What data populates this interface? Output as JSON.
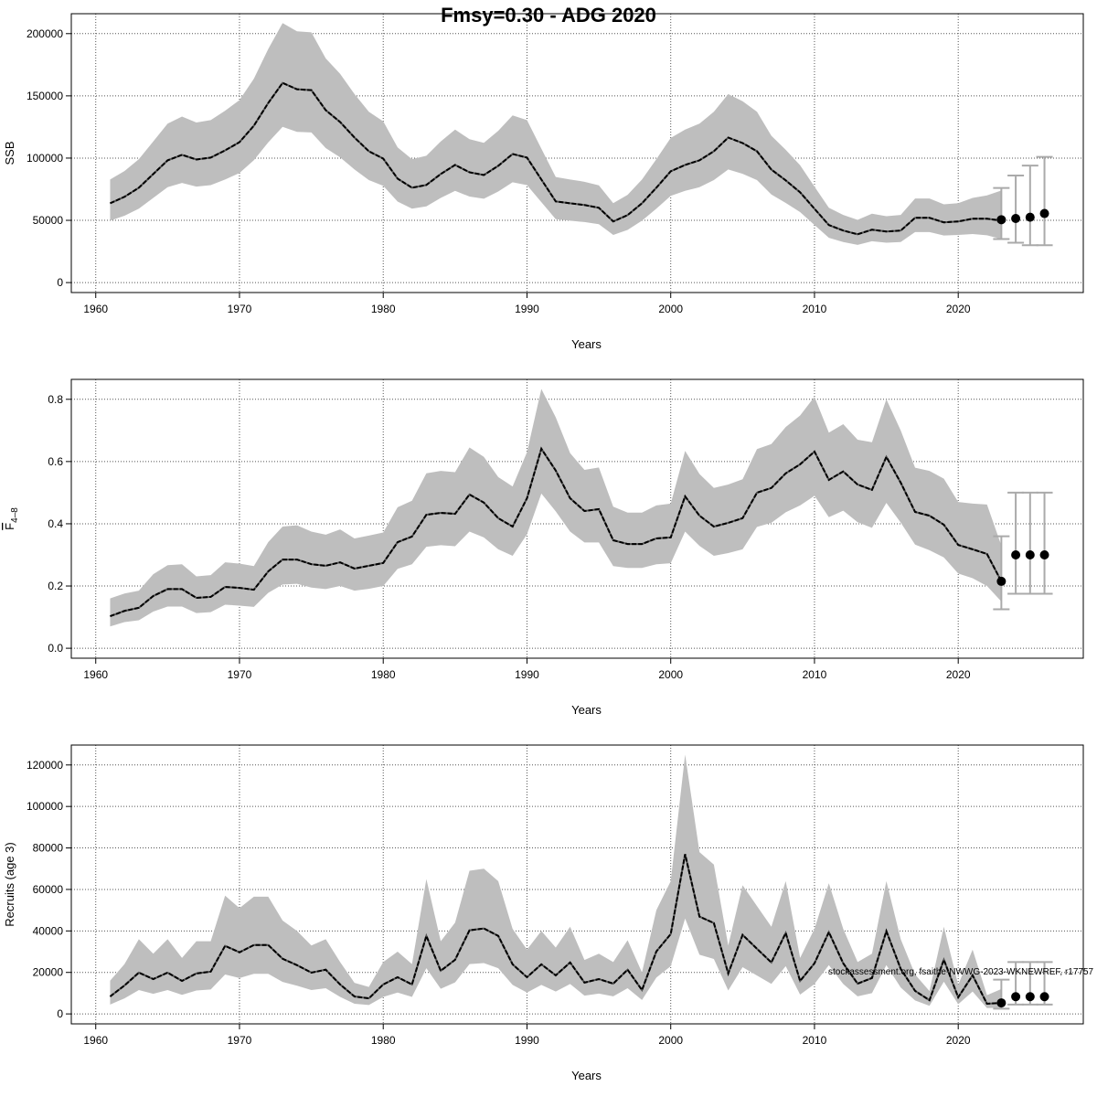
{
  "chart_data": {
    "title": "Fmsy=0.30 - ADG 2020",
    "annotation": "stockassessment.org, fsaithe-NWWG-2023-WKNEWREF, r17757",
    "panels": [
      {
        "type": "line",
        "ylabel": "SSB",
        "xlabel": "Years",
        "xlim": [
          1958.3,
          2028.7
        ],
        "ylim": [
          -8000,
          216000
        ],
        "xticks": [
          1960,
          1970,
          1980,
          1990,
          2000,
          2010,
          2020
        ],
        "yticks": [
          0,
          50000,
          100000,
          150000,
          200000
        ],
        "grid": true,
        "x_start": 1961,
        "median": [
          63700,
          68900,
          76200,
          87200,
          98200,
          102600,
          98900,
          100400,
          106200,
          112800,
          126000,
          144300,
          160400,
          155300,
          154600,
          138500,
          129000,
          116500,
          105500,
          99600,
          83500,
          76200,
          78400,
          87200,
          94500,
          88600,
          86400,
          93800,
          103300,
          100400,
          82800,
          65200,
          63700,
          62300,
          60100,
          49100,
          54200,
          63700,
          76200,
          89400,
          94500,
          98200,
          105500,
          116500,
          112100,
          105500,
          90800,
          82100,
          72500,
          59300,
          46200,
          41800,
          38800,
          42500,
          41000,
          41800,
          52000,
          52000,
          48400,
          49100,
          51300,
          51300,
          49800
        ],
        "upper": [
          82800,
          89600,
          99100,
          113400,
          127700,
          133400,
          128600,
          130500,
          138100,
          146600,
          163800,
          187600,
          208500,
          201900,
          201000,
          180100,
          167700,
          151500,
          137200,
          129500,
          108600,
          99100,
          101900,
          113400,
          122900,
          115200,
          112300,
          121900,
          134300,
          130500,
          107600,
          84800,
          82800,
          81000,
          78100,
          63800,
          70500,
          82800,
          99100,
          116200,
          122900,
          127700,
          137200,
          151500,
          145700,
          137200,
          118000,
          106700,
          94300,
          77100,
          60100,
          54300,
          50400,
          55300,
          53300,
          54300,
          67600,
          67600,
          62900,
          63800,
          68000,
          70000,
          74000
        ],
        "lower": [
          49700,
          53700,
          59400,
          68000,
          76600,
          80000,
          77100,
          78300,
          82800,
          88000,
          98300,
          112600,
          125100,
          121100,
          120600,
          108000,
          100600,
          90900,
          82300,
          77700,
          65100,
          59400,
          61200,
          68000,
          73700,
          69100,
          67400,
          73200,
          80600,
          78300,
          64600,
          50900,
          49700,
          48600,
          46900,
          38300,
          42300,
          49700,
          59400,
          69700,
          73700,
          76600,
          82300,
          90900,
          87400,
          82300,
          70800,
          64000,
          56600,
          46300,
          36000,
          32600,
          30300,
          33200,
          32000,
          32600,
          40600,
          40600,
          37800,
          38300,
          39000,
          38000,
          35000
        ],
        "projection": [
          {
            "year": 2023,
            "value": 50500,
            "low": 35000,
            "high": 76000
          },
          {
            "year": 2024,
            "value": 51500,
            "low": 32000,
            "high": 86000
          },
          {
            "year": 2025,
            "value": 52500,
            "low": 30000,
            "high": 94000
          },
          {
            "year": 2026,
            "value": 55500,
            "low": 30000,
            "high": 101000
          }
        ]
      },
      {
        "type": "line",
        "ylabel": "F",
        "ylabel_sub": "4–8",
        "xlabel": "Years",
        "xlim": [
          1958.3,
          2028.7
        ],
        "ylim": [
          -0.032,
          0.864
        ],
        "xticks": [
          1960,
          1970,
          1980,
          1990,
          2000,
          2010,
          2020
        ],
        "yticks": [
          0.0,
          0.2,
          0.4,
          0.6,
          0.8
        ],
        "yticklabels": [
          "0.0",
          "0.2",
          "0.4",
          "0.6",
          "0.8"
        ],
        "grid": true,
        "x_start": 1961,
        "median": [
          0.103,
          0.12,
          0.13,
          0.168,
          0.19,
          0.19,
          0.162,
          0.165,
          0.197,
          0.194,
          0.188,
          0.247,
          0.285,
          0.285,
          0.27,
          0.265,
          0.276,
          0.256,
          0.265,
          0.274,
          0.341,
          0.359,
          0.429,
          0.435,
          0.432,
          0.494,
          0.468,
          0.418,
          0.391,
          0.482,
          0.641,
          0.571,
          0.482,
          0.441,
          0.447,
          0.347,
          0.335,
          0.335,
          0.353,
          0.356,
          0.488,
          0.426,
          0.391,
          0.403,
          0.418,
          0.5,
          0.515,
          0.562,
          0.591,
          0.632,
          0.541,
          0.568,
          0.526,
          0.509,
          0.615,
          0.532,
          0.438,
          0.426,
          0.397,
          0.332,
          0.318,
          0.303,
          0.215
        ],
        "upper": [
          0.16,
          0.176,
          0.185,
          0.238,
          0.267,
          0.27,
          0.231,
          0.235,
          0.276,
          0.272,
          0.264,
          0.341,
          0.391,
          0.395,
          0.375,
          0.365,
          0.382,
          0.353,
          0.362,
          0.372,
          0.453,
          0.474,
          0.562,
          0.57,
          0.566,
          0.645,
          0.615,
          0.55,
          0.52,
          0.63,
          0.833,
          0.742,
          0.627,
          0.573,
          0.581,
          0.455,
          0.436,
          0.436,
          0.459,
          0.465,
          0.634,
          0.56,
          0.515,
          0.526,
          0.543,
          0.64,
          0.656,
          0.711,
          0.748,
          0.808,
          0.693,
          0.72,
          0.67,
          0.662,
          0.8,
          0.7,
          0.58,
          0.57,
          0.545,
          0.47,
          0.465,
          0.462,
          0.33
        ],
        "lower": [
          0.07,
          0.084,
          0.09,
          0.118,
          0.134,
          0.134,
          0.113,
          0.116,
          0.14,
          0.137,
          0.133,
          0.178,
          0.205,
          0.207,
          0.195,
          0.19,
          0.2,
          0.185,
          0.191,
          0.2,
          0.255,
          0.27,
          0.326,
          0.331,
          0.328,
          0.375,
          0.356,
          0.318,
          0.297,
          0.366,
          0.497,
          0.44,
          0.375,
          0.34,
          0.34,
          0.264,
          0.258,
          0.258,
          0.27,
          0.273,
          0.375,
          0.329,
          0.297,
          0.306,
          0.318,
          0.39,
          0.403,
          0.437,
          0.459,
          0.49,
          0.421,
          0.442,
          0.405,
          0.387,
          0.467,
          0.404,
          0.333,
          0.315,
          0.292,
          0.24,
          0.225,
          0.2,
          0.15
        ],
        "projection": [
          {
            "year": 2023,
            "value": 0.215,
            "low": 0.125,
            "high": 0.36
          },
          {
            "year": 2024,
            "value": 0.3,
            "low": 0.175,
            "high": 0.5
          },
          {
            "year": 2025,
            "value": 0.3,
            "low": 0.175,
            "high": 0.5
          },
          {
            "year": 2026,
            "value": 0.3,
            "low": 0.175,
            "high": 0.5
          }
        ]
      },
      {
        "type": "line",
        "ylabel": "Recruits (age 3)",
        "xlabel": "Years",
        "xlim": [
          1958.3,
          2028.7
        ],
        "ylim": [
          -4800,
          129600
        ],
        "xticks": [
          1960,
          1970,
          1980,
          1990,
          2000,
          2010,
          2020
        ],
        "yticks": [
          0,
          20000,
          40000,
          60000,
          80000,
          100000,
          120000
        ],
        "grid": true,
        "x_start": 1961,
        "median": [
          8400,
          13700,
          19900,
          16800,
          19900,
          15900,
          19500,
          20400,
          32800,
          29700,
          33200,
          33200,
          26600,
          23500,
          19900,
          21300,
          14200,
          8400,
          7500,
          14200,
          17700,
          14200,
          37600,
          20800,
          26100,
          40300,
          41200,
          37600,
          23900,
          17700,
          23900,
          18600,
          24800,
          15100,
          16800,
          14600,
          21300,
          11500,
          30100,
          38500,
          77000,
          46900,
          43800,
          19500,
          38100,
          31400,
          24800,
          39000,
          15900,
          24400,
          39400,
          24400,
          14600,
          17300,
          39900,
          21700,
          11100,
          6600,
          26100,
          8000,
          18600,
          4900,
          5300
        ],
        "upper": [
          16000,
          24000,
          36000,
          29000,
          36000,
          27000,
          35000,
          35000,
          57000,
          51000,
          56500,
          56500,
          45000,
          40000,
          33000,
          36000,
          25000,
          15000,
          13000,
          25000,
          30000,
          24000,
          65000,
          35000,
          44000,
          69000,
          70000,
          64000,
          41000,
          31000,
          40000,
          32000,
          42000,
          26000,
          29000,
          25000,
          35500,
          20000,
          50000,
          64000,
          125000,
          78000,
          72000,
          33000,
          62000,
          52000,
          42000,
          64000,
          27000,
          41000,
          63000,
          41000,
          25000,
          29000,
          64000,
          36000,
          19000,
          11000,
          42000,
          14000,
          31000,
          9000,
          12000
        ],
        "lower": [
          4500,
          7500,
          11500,
          9700,
          11500,
          9200,
          11300,
          11800,
          19000,
          17300,
          19300,
          19300,
          15400,
          13600,
          11500,
          12400,
          8200,
          4900,
          4300,
          8200,
          10300,
          8200,
          22000,
          12100,
          15200,
          24000,
          24500,
          22000,
          14000,
          10300,
          14000,
          10800,
          14400,
          8800,
          9800,
          8500,
          12400,
          6700,
          17500,
          23000,
          46000,
          28500,
          26500,
          11300,
          22500,
          18500,
          14500,
          23000,
          9300,
          14400,
          23500,
          14400,
          8500,
          10000,
          23500,
          12700,
          6500,
          3900,
          15500,
          4700,
          10800,
          2800,
          3000
        ],
        "projection": [
          {
            "year": 2023,
            "value": 5300,
            "low": 2500,
            "high": 16500
          },
          {
            "year": 2024,
            "value": 8300,
            "low": 4500,
            "high": 25000
          },
          {
            "year": 2025,
            "value": 8300,
            "low": 4500,
            "high": 25000
          },
          {
            "year": 2026,
            "value": 8300,
            "low": 4500,
            "high": 25000
          }
        ]
      }
    ]
  },
  "colors": {
    "band": "#bebebe",
    "line": "#000000",
    "errorbar": "#aaaaaa",
    "grid": "#555555"
  }
}
